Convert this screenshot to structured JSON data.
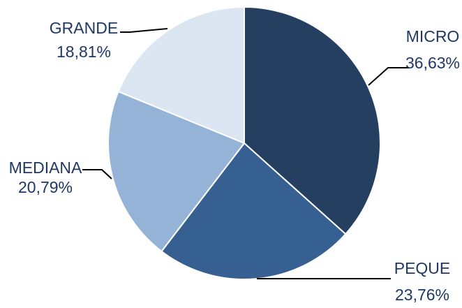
{
  "chart_data": {
    "type": "pie",
    "title": "",
    "start_angle_deg": 0,
    "direction": "clockwise",
    "slices": [
      {
        "category": "MICRO",
        "value": 36.63,
        "label": "36,63%",
        "color": "#243f60"
      },
      {
        "category": "PEQUE",
        "value": 23.76,
        "label": "23,76%",
        "color": "#376092"
      },
      {
        "category": "MEDIANA",
        "value": 20.79,
        "label": "20,79%",
        "color": "#95b3d7"
      },
      {
        "category": "GRANDE",
        "value": 18.81,
        "label": "18,81%",
        "color": "#dce6f2"
      }
    ],
    "label_color": "#1f3864",
    "slice_border_color": "#ffffff",
    "legend": "none"
  }
}
